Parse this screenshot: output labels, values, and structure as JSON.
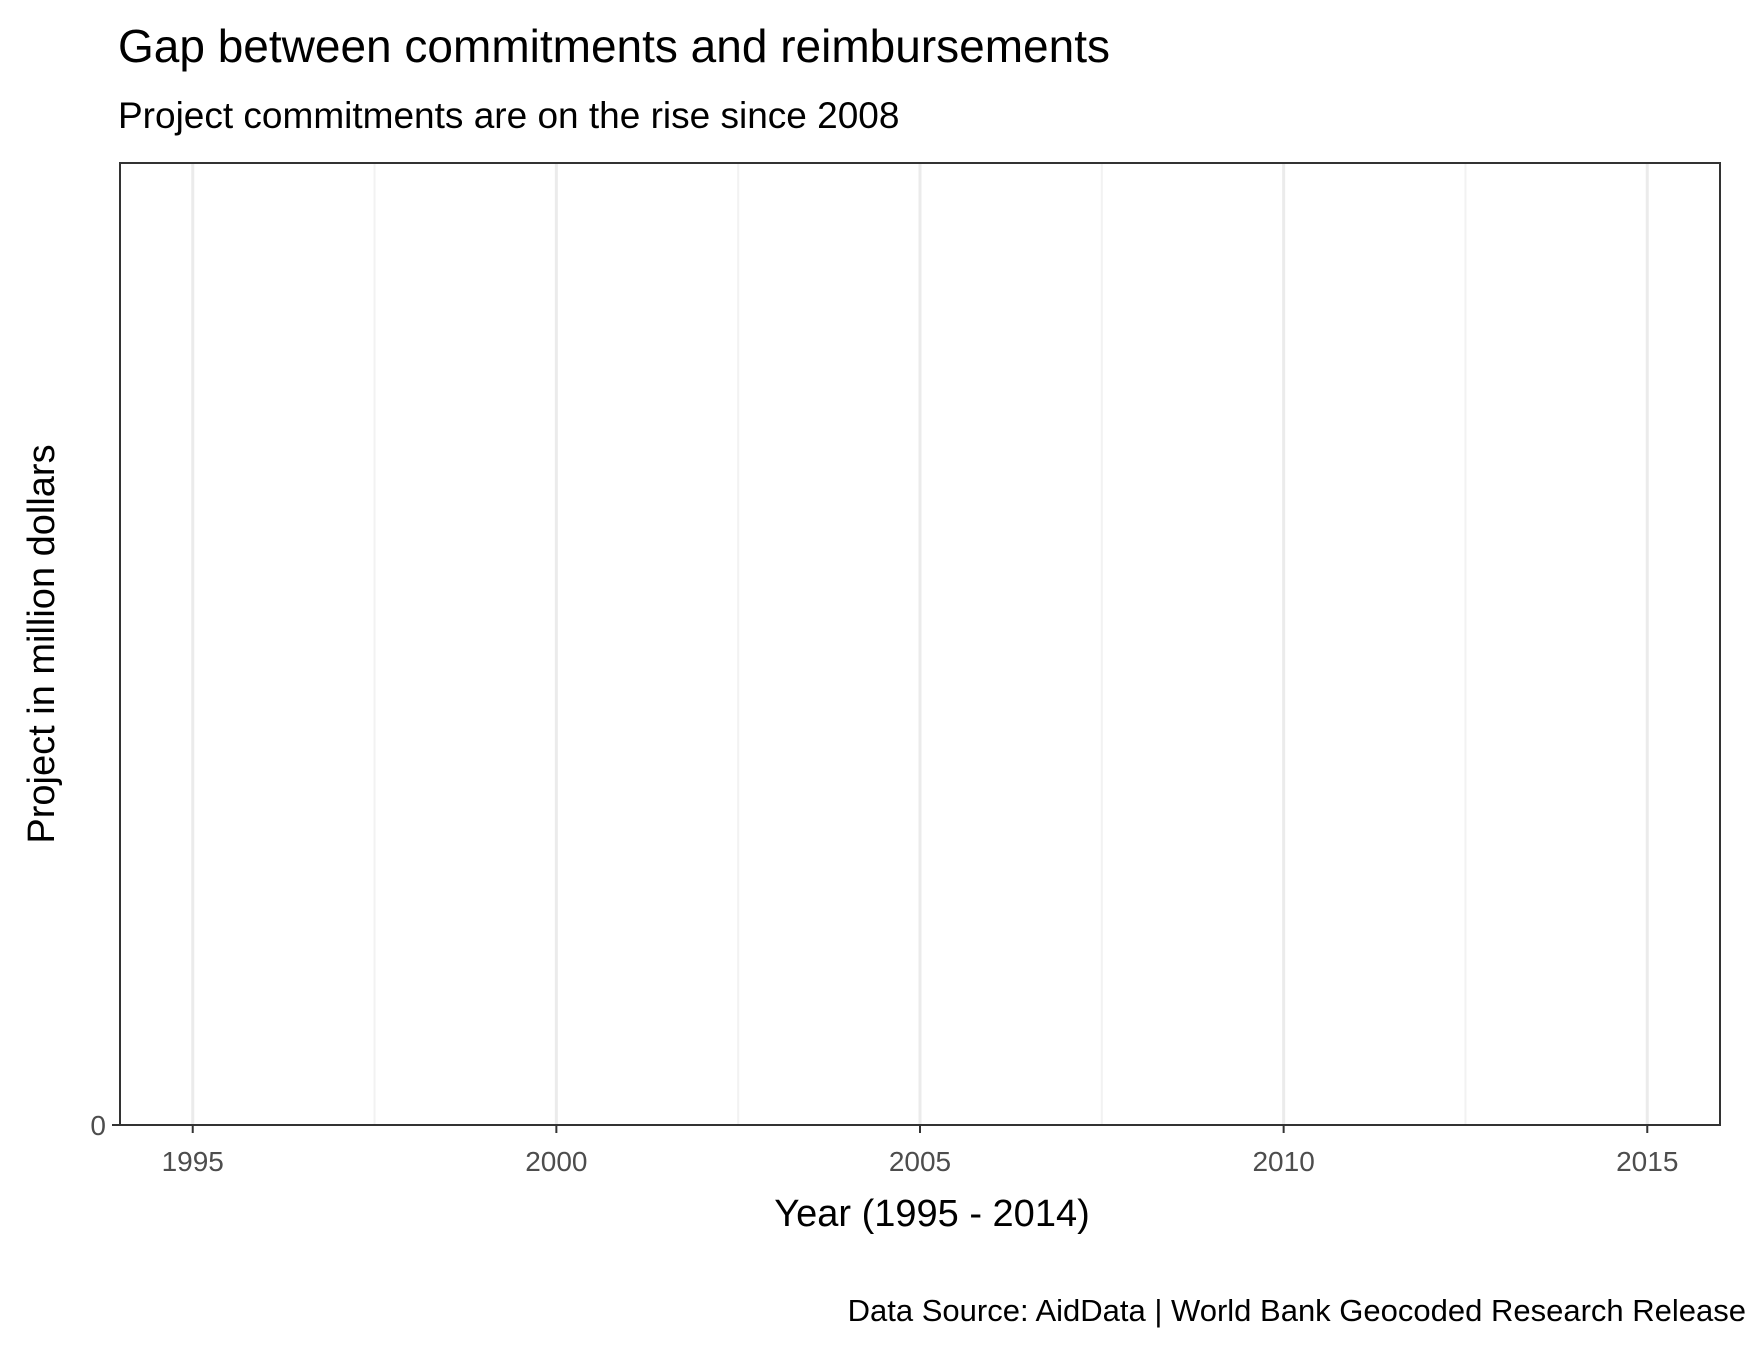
{
  "chart_data": {
    "type": "line",
    "title": "Gap between commitments and reimbursements",
    "subtitle": "Project commitments are on the rise since 2008",
    "xlabel": "Year (1995 - 2014)",
    "ylabel": "Project in million dollars",
    "caption": "Data Source: AidData | World Bank Geocoded Research Release",
    "xlim": [
      1994,
      2016
    ],
    "ylim": [
      0,
      1
    ],
    "x_ticks": [
      1995,
      2000,
      2005,
      2010,
      2015
    ],
    "x_minor_ticks": [
      1997.5,
      2002.5,
      2007.5,
      2012.5
    ],
    "y_ticks": [
      0
    ],
    "grid": "vertical",
    "series": [],
    "colors": {
      "panel_border": "#333333",
      "grid_major": "#ebebeb",
      "grid_minor": "#f2f2f2",
      "tick_label": "#4d4d4d"
    }
  }
}
